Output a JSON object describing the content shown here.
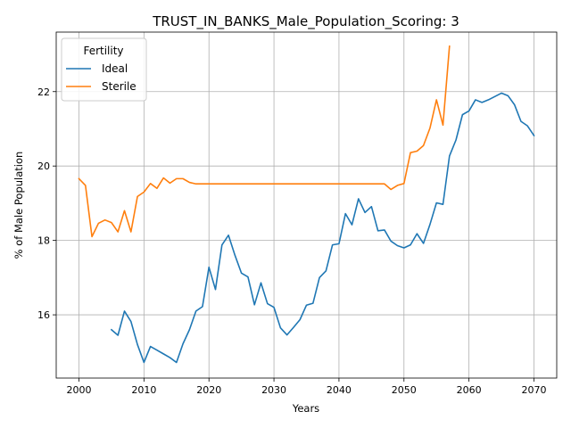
{
  "chart_data": {
    "type": "line",
    "title": "TRUST_IN_BANKS_Male_Population_Scoring: 3",
    "xlabel": "Years",
    "ylabel": "% of Male Population",
    "xlim": [
      1996.5,
      2073.5
    ],
    "ylim": [
      14.3,
      23.6
    ],
    "xticks": [
      2000,
      2010,
      2020,
      2030,
      2040,
      2050,
      2060,
      2070
    ],
    "yticks": [
      16,
      18,
      20,
      22
    ],
    "grid": true,
    "legend": {
      "title": "Fertility",
      "position": "top-left"
    },
    "series": [
      {
        "name": "Ideal",
        "color": "#1f77b4",
        "x": [
          2005,
          2006,
          2007,
          2008,
          2009,
          2010,
          2011,
          2012,
          2013,
          2014,
          2015,
          2016,
          2017,
          2018,
          2019,
          2020,
          2021,
          2022,
          2023,
          2024,
          2025,
          2026,
          2027,
          2028,
          2029,
          2030,
          2031,
          2032,
          2033,
          2034,
          2035,
          2036,
          2037,
          2038,
          2039,
          2040,
          2041,
          2042,
          2043,
          2044,
          2045,
          2046,
          2047,
          2048,
          2049,
          2050,
          2051,
          2052,
          2053,
          2054,
          2055,
          2056,
          2057,
          2058,
          2059,
          2060,
          2061,
          2062,
          2063,
          2064,
          2065,
          2066,
          2067,
          2068,
          2069,
          2070
        ],
        "y": [
          15.6,
          15.45,
          16.1,
          15.82,
          15.2,
          14.72,
          15.15,
          15.05,
          14.95,
          14.85,
          14.72,
          15.22,
          15.6,
          16.1,
          16.22,
          17.28,
          16.68,
          17.88,
          18.14,
          17.6,
          17.12,
          17.02,
          16.27,
          16.86,
          16.3,
          16.2,
          15.65,
          15.46,
          15.66,
          15.87,
          16.26,
          16.31,
          17.0,
          17.18,
          17.88,
          17.91,
          18.72,
          18.42,
          19.12,
          18.75,
          18.91,
          18.26,
          18.28,
          17.98,
          17.86,
          17.8,
          17.88,
          18.18,
          17.92,
          18.43,
          19.01,
          18.97,
          20.27,
          20.7,
          21.38,
          21.48,
          21.78,
          21.71,
          21.78,
          21.87,
          21.96,
          21.89,
          21.65,
          21.2,
          21.08,
          20.82
        ]
      },
      {
        "name": "Sterile",
        "color": "#ff7f0e",
        "x": [
          2000,
          2001,
          2002,
          2003,
          2004,
          2005,
          2006,
          2007,
          2008,
          2009,
          2010,
          2011,
          2012,
          2013,
          2014,
          2015,
          2016,
          2017,
          2018,
          2019,
          2020,
          2021,
          2022,
          2023,
          2024,
          2025,
          2026,
          2027,
          2028,
          2029,
          2030,
          2031,
          2032,
          2033,
          2034,
          2035,
          2036,
          2037,
          2038,
          2039,
          2040,
          2041,
          2042,
          2043,
          2044,
          2045,
          2046,
          2047,
          2048,
          2049,
          2050,
          2051,
          2052,
          2053,
          2054,
          2055,
          2056,
          2057
        ],
        "y": [
          19.66,
          19.48,
          18.1,
          18.46,
          18.55,
          18.48,
          18.23,
          18.8,
          18.23,
          19.18,
          19.3,
          19.53,
          19.4,
          19.68,
          19.54,
          19.66,
          19.66,
          19.56,
          19.52,
          19.52,
          19.52,
          19.52,
          19.52,
          19.52,
          19.52,
          19.52,
          19.52,
          19.52,
          19.52,
          19.52,
          19.52,
          19.52,
          19.52,
          19.52,
          19.52,
          19.52,
          19.52,
          19.52,
          19.52,
          19.52,
          19.52,
          19.52,
          19.52,
          19.52,
          19.52,
          19.52,
          19.52,
          19.52,
          19.37,
          19.48,
          19.53,
          20.36,
          20.4,
          20.55,
          21.02,
          21.78,
          21.1,
          23.22
        ]
      }
    ]
  }
}
